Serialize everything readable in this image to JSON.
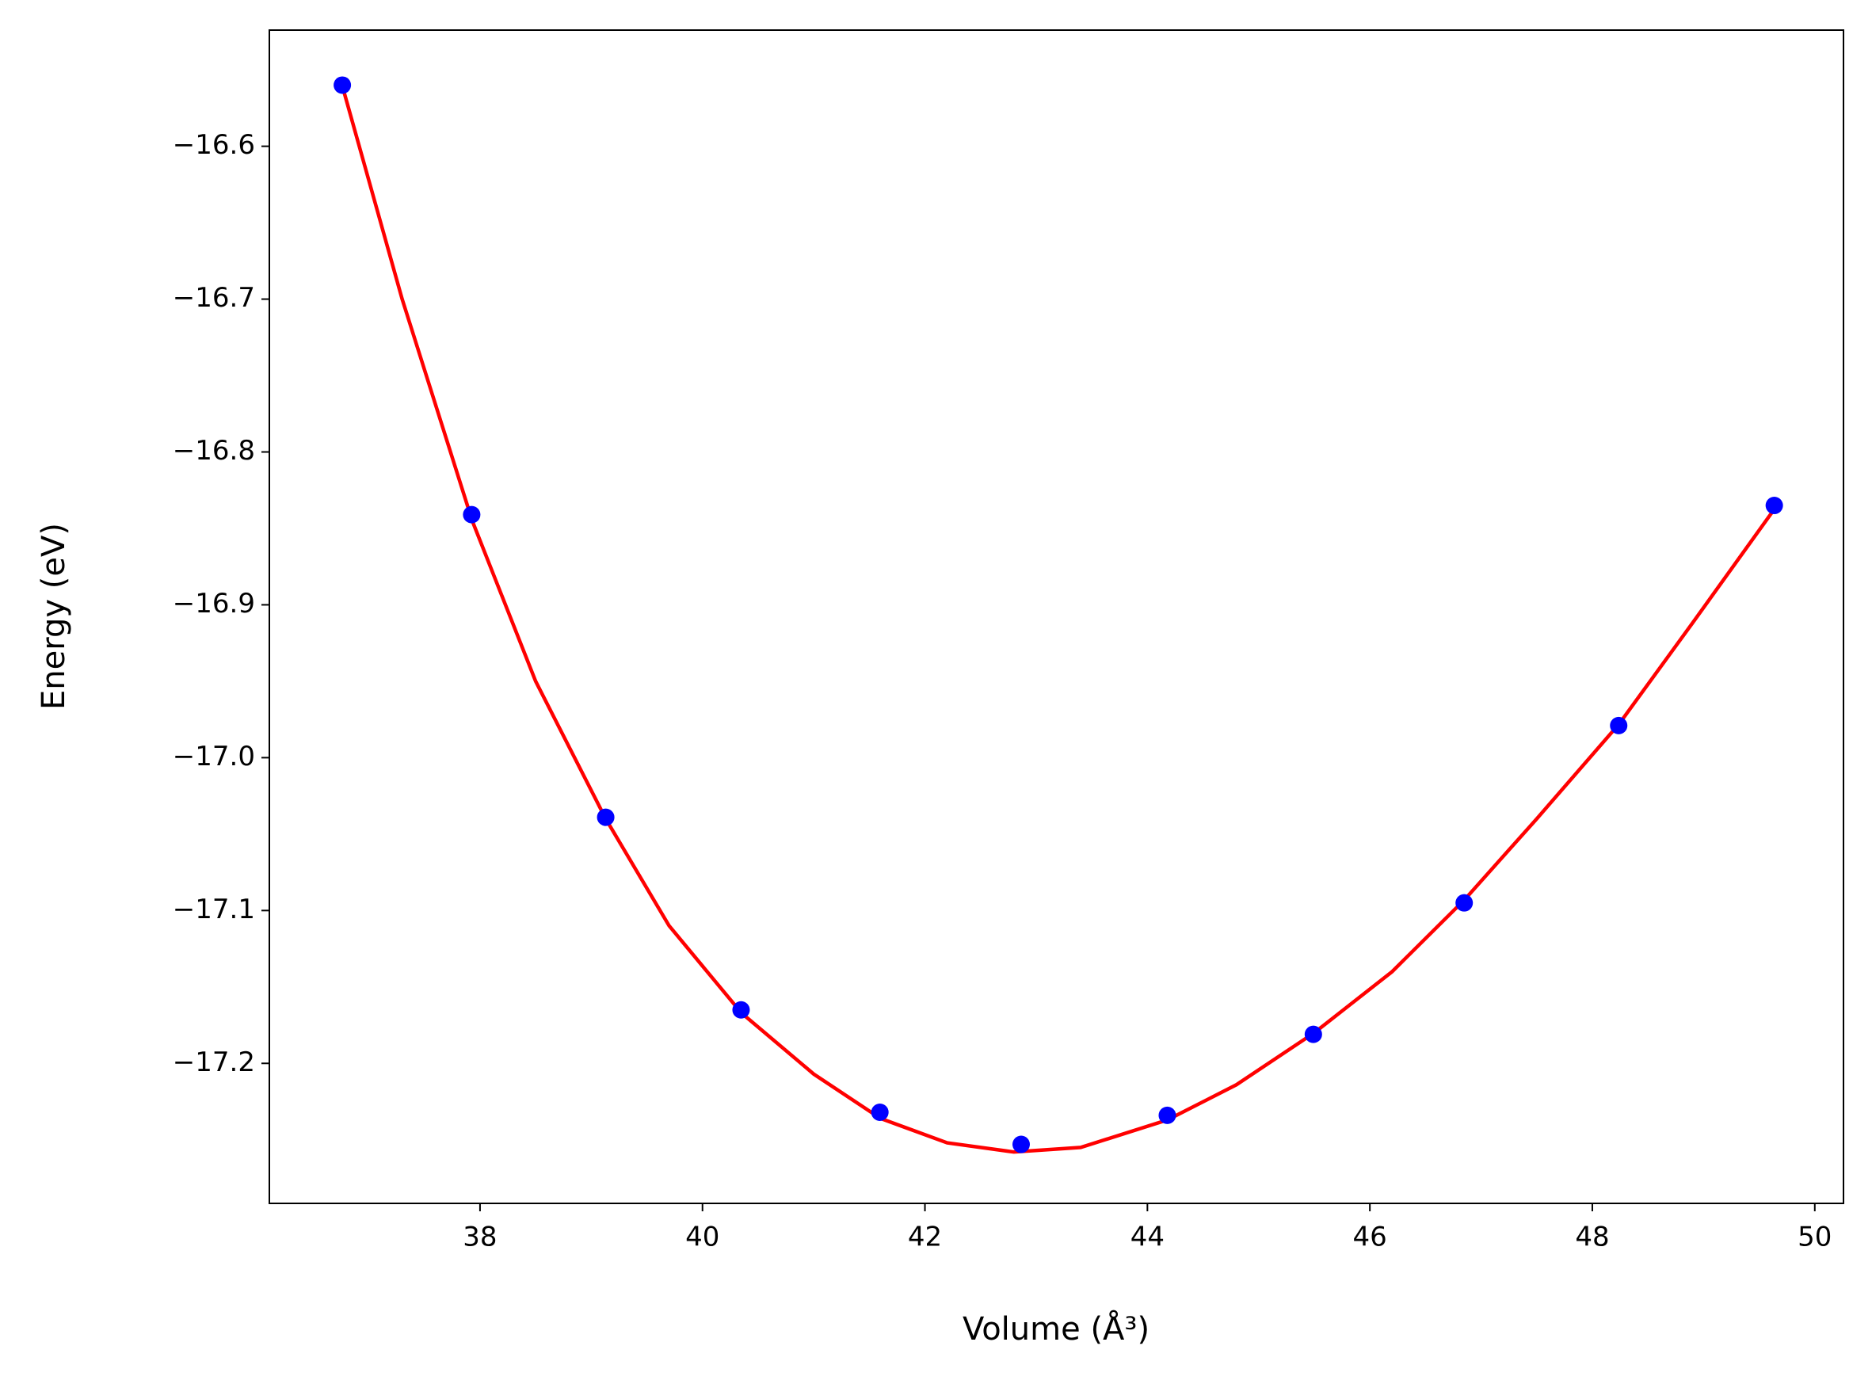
{
  "chart_data": {
    "type": "scatter",
    "xlabel": "Volume (Å³)",
    "ylabel": "Energy (eV)",
    "xlim": [
      36.106,
      50.258
    ],
    "ylim": [
      -17.2916,
      -16.524
    ],
    "xticks": [
      38,
      40,
      42,
      44,
      46,
      48,
      50
    ],
    "yticks": [
      {
        "value": -16.6,
        "label": "−16.6"
      },
      {
        "value": -16.7,
        "label": "−16.7"
      },
      {
        "value": -16.8,
        "label": "−16.8"
      },
      {
        "value": -16.9,
        "label": "−16.9"
      },
      {
        "value": -17.0,
        "label": "−17.0"
      },
      {
        "value": -17.1,
        "label": "−17.1"
      },
      {
        "value": -17.2,
        "label": "−17.2"
      }
    ],
    "grid": false,
    "series": [
      {
        "style": "line",
        "color": "#ff0000",
        "x": [
          36.76,
          37.3,
          37.93,
          38.5,
          39.13,
          39.7,
          40.35,
          41.0,
          41.6,
          42.2,
          42.8,
          43.4,
          44.18,
          44.8,
          45.5,
          46.2,
          46.85,
          47.5,
          48.24,
          48.9,
          49.64
        ],
        "values": [
          -16.56,
          -16.7,
          -16.845,
          -16.95,
          -17.04,
          -17.11,
          -17.167,
          -17.207,
          -17.236,
          -17.252,
          -17.258,
          -17.255,
          -17.237,
          -17.214,
          -17.18,
          -17.14,
          -17.093,
          -17.04,
          -16.978,
          -16.912,
          -16.837
        ]
      },
      {
        "style": "markers",
        "color": "#0000ff",
        "x": [
          36.762,
          37.925,
          39.13,
          40.347,
          41.595,
          42.865,
          44.179,
          45.492,
          46.848,
          48.237,
          49.636
        ],
        "values": [
          -16.56,
          -16.841,
          -17.039,
          -17.165,
          -17.232,
          -17.253,
          -17.234,
          -17.181,
          -17.095,
          -16.979,
          -16.835
        ]
      }
    ]
  }
}
